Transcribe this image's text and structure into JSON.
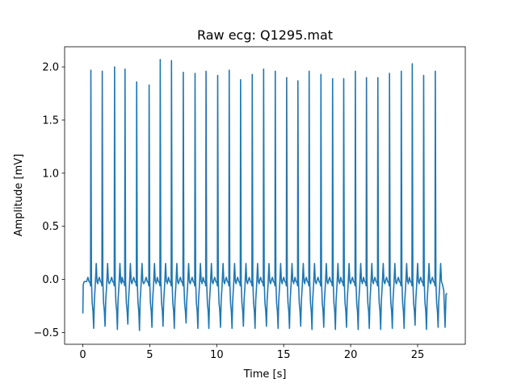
{
  "chart_data": {
    "type": "line",
    "title": "Raw ecg: Q1295.mat",
    "xlabel": "Time [s]",
    "ylabel": "Amplitude [mV]",
    "xlim": [
      -1.36,
      28.56
    ],
    "ylim": [
      -0.61,
      2.19
    ],
    "xticks": [
      0,
      5,
      10,
      15,
      20,
      25
    ],
    "xtick_labels": [
      "0",
      "5",
      "10",
      "15",
      "20",
      "25"
    ],
    "yticks": [
      -0.5,
      0.0,
      0.5,
      1.0,
      1.5,
      2.0
    ],
    "ytick_labels": [
      "−0.5",
      "0.0",
      "0.5",
      "1.0",
      "1.5",
      "2.0"
    ],
    "grid": false,
    "line_color": "#1f77b4",
    "series": [
      {
        "start": [
          0.0,
          -0.32
        ],
        "end": [
          27.2,
          -0.13
        ],
        "beat_times": [
          0.6,
          1.45,
          2.37,
          3.15,
          4.02,
          4.95,
          5.78,
          6.62,
          7.5,
          8.38,
          9.2,
          10.07,
          10.93,
          11.78,
          12.65,
          13.5,
          14.37,
          15.22,
          16.06,
          16.9,
          17.78,
          18.65,
          19.48,
          20.35,
          21.18,
          22.03,
          22.9,
          23.78,
          24.6,
          25.45,
          26.32
        ],
        "r_peaks": [
          1.97,
          1.96,
          2.0,
          1.98,
          1.86,
          1.83,
          2.07,
          2.06,
          1.95,
          1.94,
          1.96,
          1.92,
          1.97,
          1.88,
          1.93,
          1.98,
          1.96,
          1.9,
          1.87,
          1.96,
          1.93,
          1.89,
          1.89,
          1.96,
          1.9,
          1.9,
          1.94,
          1.96,
          2.03,
          1.92,
          1.96
        ],
        "s_troughs": [
          -0.46,
          -0.44,
          -0.47,
          -0.42,
          -0.48,
          -0.45,
          -0.44,
          -0.46,
          -0.41,
          -0.46,
          -0.46,
          -0.45,
          -0.46,
          -0.44,
          -0.46,
          -0.44,
          -0.46,
          -0.46,
          -0.44,
          -0.47,
          -0.45,
          -0.47,
          -0.45,
          -0.47,
          -0.46,
          -0.47,
          -0.46,
          -0.46,
          -0.43,
          -0.47,
          -0.45
        ]
      }
    ]
  }
}
